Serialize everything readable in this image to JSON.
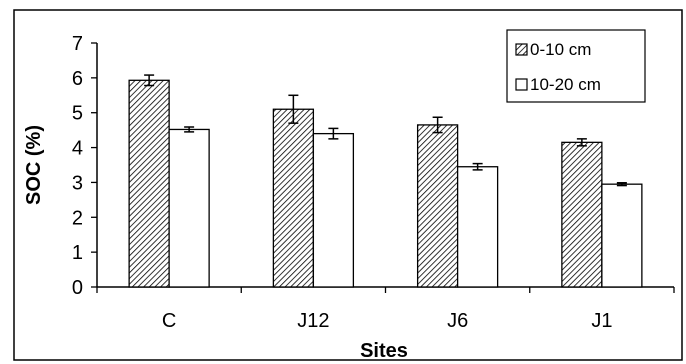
{
  "chart_data": {
    "type": "bar",
    "categories": [
      "C",
      "J12",
      "J6",
      "J1"
    ],
    "series": [
      {
        "name": "0-10 cm",
        "values": [
          5.93,
          5.1,
          4.65,
          4.15
        ],
        "errors": [
          0.15,
          0.4,
          0.22,
          0.1
        ],
        "pattern": "hatched"
      },
      {
        "name": "10-20 cm",
        "values": [
          4.52,
          4.4,
          3.45,
          2.95
        ],
        "errors": [
          0.07,
          0.15,
          0.09,
          0.04
        ],
        "pattern": "white"
      }
    ],
    "title": "",
    "xlabel": "Sites",
    "ylabel": "SOC (%)",
    "ylim": [
      0,
      7
    ],
    "yticks": [
      0,
      1,
      2,
      3,
      4,
      5,
      6,
      7
    ],
    "grid": false,
    "legend_position": "top-right"
  },
  "colors": {
    "bar_outline": "#000000",
    "hatch": "#000000",
    "background": "#ffffff"
  }
}
